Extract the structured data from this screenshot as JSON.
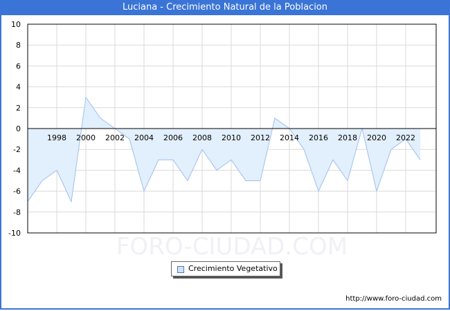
{
  "window": {
    "title": "Luciana - Crecimiento Natural de la Poblacion"
  },
  "watermark": "FORO-CIUDAD.COM",
  "footer": {
    "url": "http://www.foro-ciudad.com"
  },
  "legend": {
    "label": "Crecimiento Vegetativo"
  },
  "colors": {
    "title_bar": "#3a74d6",
    "line": "#9ec0ec",
    "fill": "#e2effc",
    "grid": "#d9d9d9",
    "zero_line": "#000000"
  },
  "chart_data": {
    "type": "area",
    "title": "Luciana - Crecimiento Natural de la Poblacion",
    "xlabel": "",
    "ylabel": "",
    "x": [
      1996,
      1997,
      1998,
      1999,
      2000,
      2001,
      2002,
      2003,
      2004,
      2005,
      2006,
      2007,
      2008,
      2009,
      2010,
      2011,
      2012,
      2013,
      2014,
      2015,
      2016,
      2017,
      2018,
      2019,
      2020,
      2021,
      2022,
      2023
    ],
    "series": [
      {
        "name": "Crecimiento Vegetativo",
        "values": [
          -7,
          -5,
          -4,
          -7,
          3,
          1,
          0,
          -1,
          -6,
          -3,
          -3,
          -5,
          -2,
          -4,
          -3,
          -5,
          -5,
          1,
          0,
          -2,
          -6,
          -3,
          -5,
          0,
          -6,
          -2,
          -1,
          -3
        ]
      }
    ],
    "x_tick_labels": [
      "1998",
      "2000",
      "2002",
      "2004",
      "2006",
      "2008",
      "2010",
      "2012",
      "2014",
      "2016",
      "2018",
      "2020",
      "2022"
    ],
    "y_tick_labels": [
      "10",
      "8",
      "6",
      "4",
      "2",
      "0",
      "-2",
      "-4",
      "-6",
      "-8",
      "-10"
    ],
    "ylim": [
      -10,
      10
    ],
    "grid": true,
    "legend_position": "bottom-center"
  }
}
